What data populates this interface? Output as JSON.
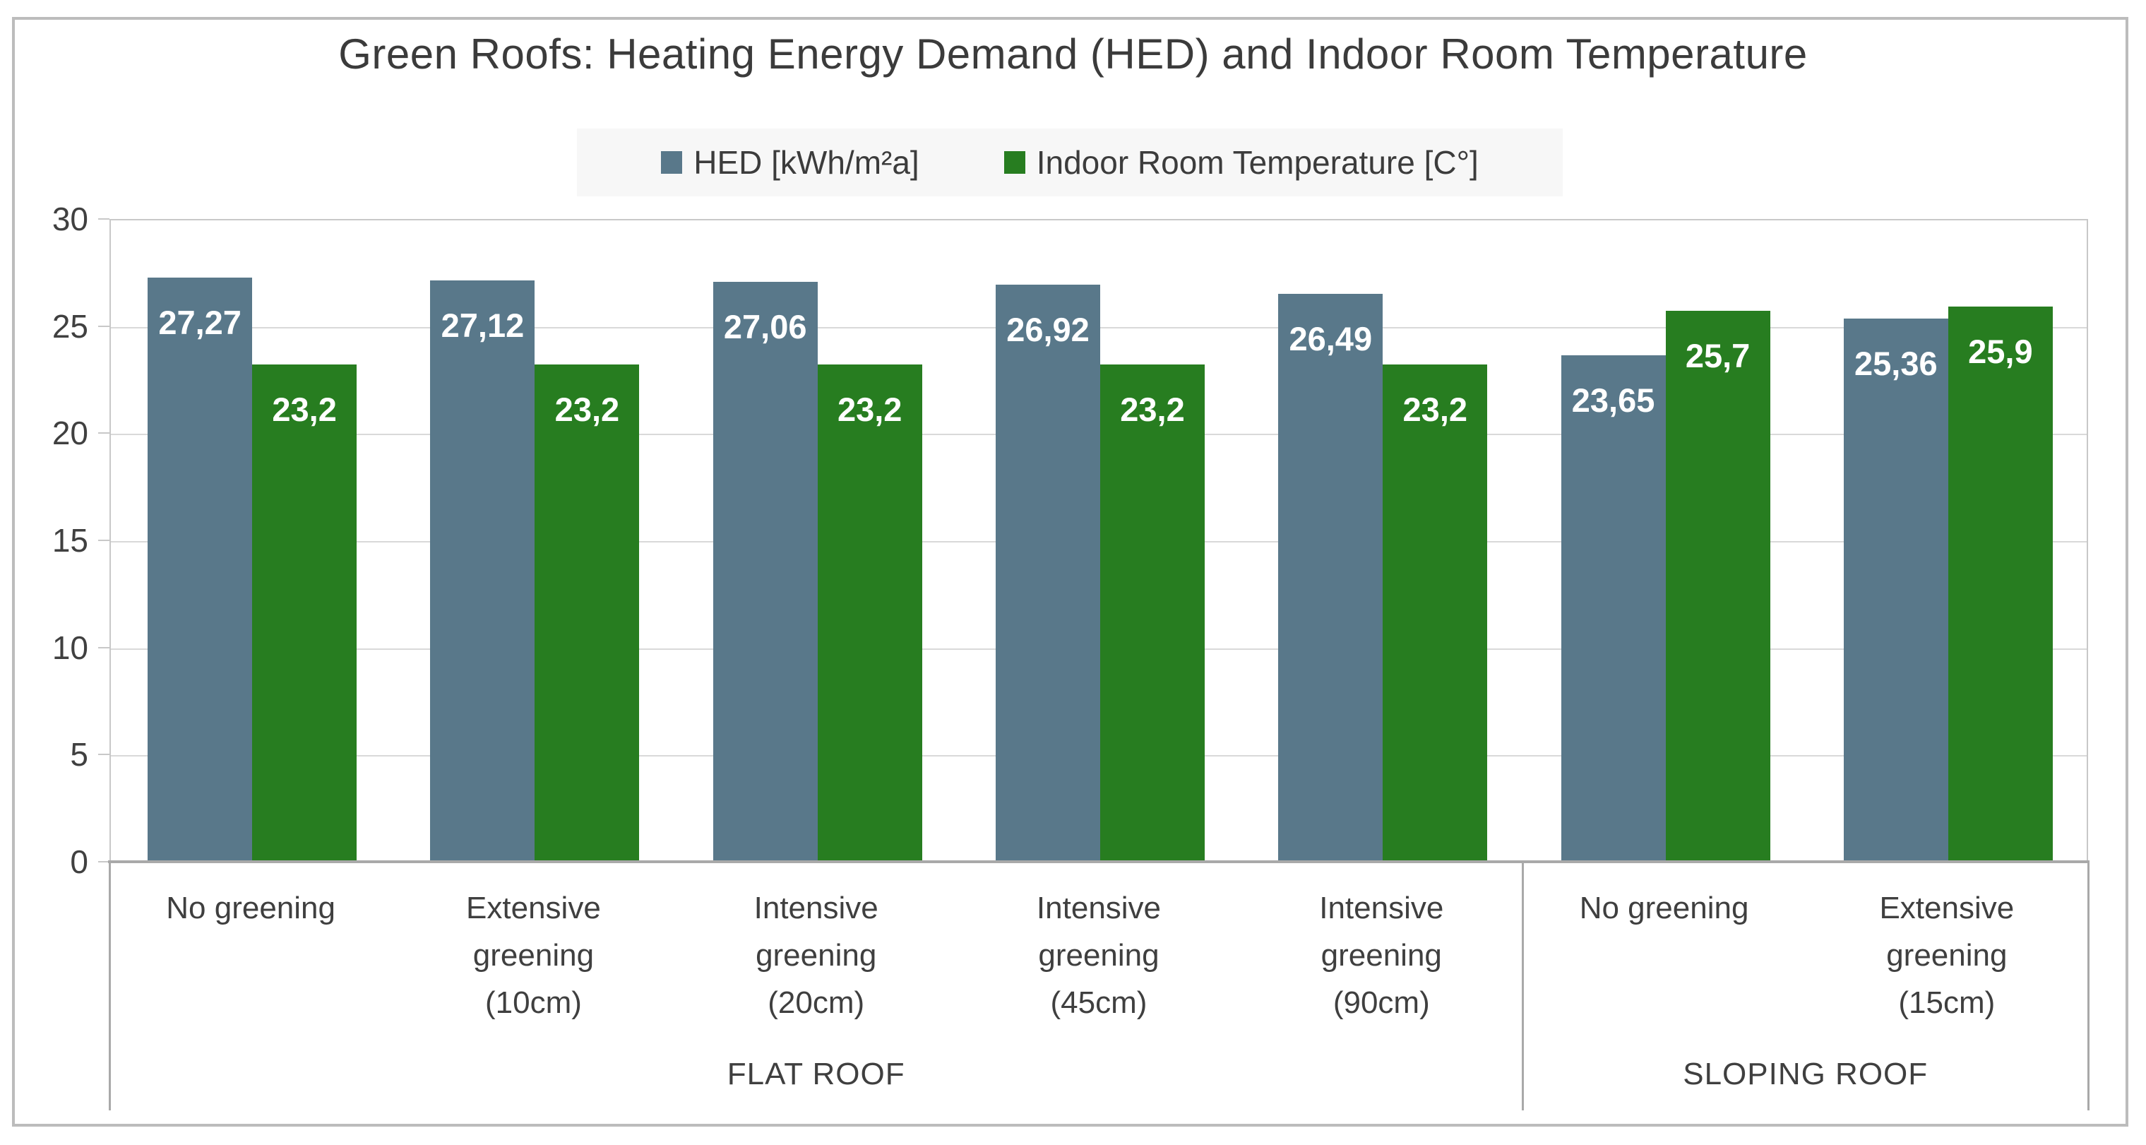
{
  "title": "Green Roofs: Heating Energy Demand (HED) and Indoor Room Temperature",
  "legend": [
    {
      "label": "HED [kWh/m²a]",
      "color": "#59788a"
    },
    {
      "label": "Indoor Room Temperature [C°]",
      "color": "#277d20"
    }
  ],
  "chart_data": {
    "type": "bar",
    "title": "Green Roofs: Heating Energy Demand (HED) and Indoor Room Temperature",
    "categories": [
      "No greening",
      "Extensive greening (10cm)",
      "Intensive greening (20cm)",
      "Intensive greening (45cm)",
      "Intensive greening (90cm)",
      "No greening",
      "Extensive greening (15cm)"
    ],
    "category_label_lines": [
      [
        "No greening"
      ],
      [
        "Extensive",
        "greening",
        "(10cm)"
      ],
      [
        "Intensive",
        "greening",
        "(20cm)"
      ],
      [
        "Intensive",
        "greening",
        "(45cm)"
      ],
      [
        "Intensive",
        "greening",
        "(90cm)"
      ],
      [
        "No greening"
      ],
      [
        "Extensive",
        "greening",
        "(15cm)"
      ]
    ],
    "groups": [
      {
        "label": "FLAT ROOF",
        "span": 5
      },
      {
        "label": "SLOPING ROOF",
        "span": 2
      }
    ],
    "series": [
      {
        "name": "HED [kWh/m²a]",
        "color": "#59788a",
        "values": [
          27.27,
          27.12,
          27.06,
          26.92,
          26.49,
          23.65,
          25.36
        ],
        "labels": [
          "27,27",
          "27,12",
          "27,06",
          "26,92",
          "26,49",
          "23,65",
          "25,36"
        ]
      },
      {
        "name": "Indoor Room Temperature [C°]",
        "color": "#277d20",
        "values": [
          23.2,
          23.2,
          23.2,
          23.2,
          23.2,
          25.7,
          25.9
        ],
        "labels": [
          "23,2",
          "23,2",
          "23,2",
          "23,2",
          "23,2",
          "25,7",
          "25,9"
        ]
      }
    ],
    "xlabel": "",
    "ylabel": "",
    "ylim": [
      0,
      30
    ],
    "yticks": [
      0,
      5,
      10,
      15,
      20,
      25,
      30
    ],
    "grid": true,
    "legend_position": "top"
  }
}
